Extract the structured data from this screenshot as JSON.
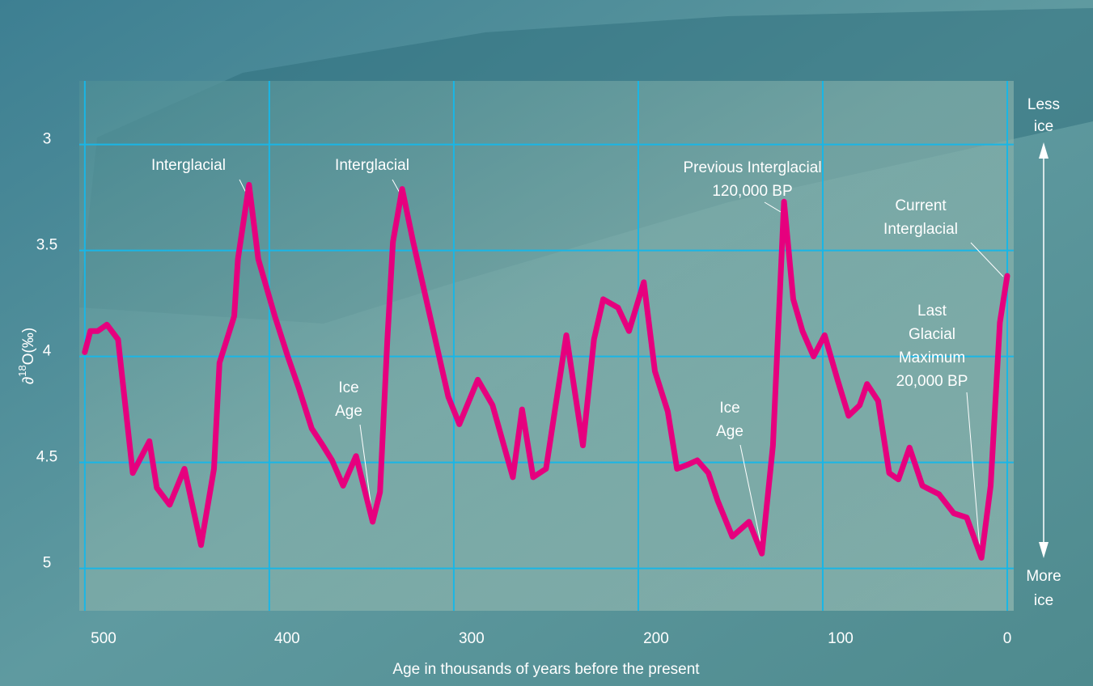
{
  "chart_data": {
    "type": "line",
    "y_label": [
      "∂",
      "18",
      "O(‰)"
    ],
    "x_label": "Age in thousands of years before the present",
    "xlim": [
      503,
      -3.5
    ],
    "ylim": [
      5.2,
      2.7
    ],
    "xticks": [
      500,
      400,
      300,
      200,
      100,
      0
    ],
    "yticks": [
      3,
      3.5,
      4,
      4.5,
      5
    ],
    "grid": true,
    "series": [
      {
        "color": "#e6007e",
        "x": [
          500,
          497,
          493,
          488,
          482,
          474,
          465,
          461,
          454,
          446,
          437,
          430,
          427,
          419,
          417,
          411,
          406,
          397,
          390,
          384,
          377,
          371,
          366,
          360,
          353,
          344,
          340,
          336,
          333,
          328,
          322,
          316,
          309,
          303,
          297,
          287,
          279,
          268,
          263,
          257,
          250,
          239,
          230,
          224,
          219,
          211,
          205,
          197,
          191,
          184,
          179,
          173,
          168,
          162,
          157,
          149,
          140,
          133,
          127,
          121,
          116,
          111,
          105,
          99,
          92,
          86,
          80,
          76,
          70,
          64,
          59,
          53,
          46,
          37,
          29,
          22,
          14,
          9,
          4,
          0
        ],
        "values": [
          3.98,
          3.88,
          3.88,
          3.85,
          3.92,
          4.55,
          4.4,
          4.62,
          4.7,
          4.53,
          4.89,
          4.53,
          4.03,
          3.81,
          3.54,
          3.19,
          3.54,
          3.81,
          4.0,
          4.15,
          4.34,
          4.42,
          4.49,
          4.61,
          4.47,
          4.78,
          4.64,
          3.92,
          3.46,
          3.21,
          3.46,
          3.69,
          3.96,
          4.19,
          4.32,
          4.11,
          4.23,
          4.57,
          4.25,
          4.57,
          4.53,
          3.9,
          4.42,
          3.92,
          3.73,
          3.77,
          3.88,
          3.65,
          4.07,
          4.26,
          4.53,
          4.51,
          4.49,
          4.55,
          4.68,
          4.85,
          4.78,
          4.93,
          4.42,
          3.27,
          3.73,
          3.88,
          4.0,
          3.9,
          4.11,
          4.28,
          4.23,
          4.13,
          4.21,
          4.55,
          4.58,
          4.43,
          4.61,
          4.65,
          4.74,
          4.76,
          4.95,
          4.61,
          3.84,
          3.62
        ]
      }
    ],
    "annotations": [
      {
        "lines": [
          "Interglacial"
        ]
      },
      {
        "lines": [
          "Interglacial"
        ]
      },
      {
        "lines": [
          "Ice",
          "Age"
        ]
      },
      {
        "lines": [
          "Previous Interglacial",
          "120,000 BP"
        ]
      },
      {
        "lines": [
          "Current",
          "Interglacial"
        ]
      },
      {
        "lines": [
          "Ice",
          "Age"
        ]
      },
      {
        "lines": [
          "Last",
          "Glacial",
          "Maximum",
          "20,000 BP"
        ]
      }
    ],
    "side_top": [
      "Less",
      "ice"
    ],
    "side_bottom": [
      "More",
      "ice"
    ]
  }
}
